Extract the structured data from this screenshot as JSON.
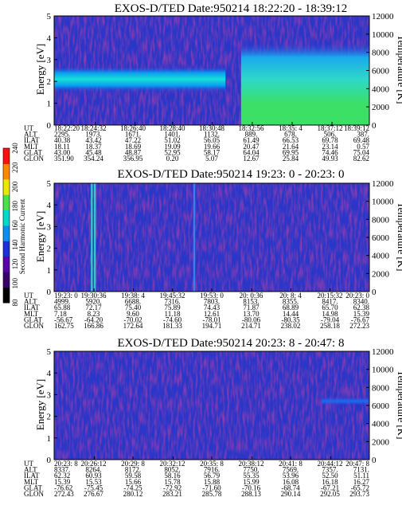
{
  "figure": {
    "colorbar": {
      "label": "Second Harmonic Current",
      "ticks": [
        "80",
        "100",
        "120",
        "140",
        "160",
        "180",
        "200",
        "220",
        "240"
      ],
      "colors": [
        "#000000",
        "#3a006a",
        "#5a00a8",
        "#1f2fd8",
        "#0a8ef0",
        "#00d8c8",
        "#4ae04a",
        "#e8e800",
        "#ff8800",
        "#ff1010"
      ]
    },
    "ephemeris_row_labels": [
      "UT",
      "ALT",
      "ILAT",
      "MLT",
      "GLAT",
      "GLON"
    ]
  },
  "chart_data": [
    {
      "type": "heatmap",
      "title": "EXOS-D/TED   Date:950214   18:22:20 - 18:39:12",
      "ylabel": "Energy [eV]",
      "ylabel_right": "Temperature [K]",
      "ylim": [
        0,
        5
      ],
      "ylim_right": [
        0,
        12000
      ],
      "yticks": [
        "0",
        "1",
        "2",
        "3",
        "4",
        "5"
      ],
      "yticks_right": [
        "0",
        "2000",
        "4000",
        "6000",
        "8000",
        "10000",
        "12000"
      ],
      "grid": false,
      "ephemeris": {
        "UT": [
          "18:22:20",
          "18:24:32",
          "18:26:40",
          "18:28:40",
          "18:30:48",
          "18:32:56",
          "18:35: 4",
          "18:37:12",
          "18:39:12"
        ],
        "ALT": [
          "2295.",
          "1973.",
          "1671.",
          "1401.",
          "1132.",
          "889.",
          "678.",
          "506.",
          "387."
        ],
        "ILAT": [
          "40.38",
          "43.42",
          "47.22",
          "51.02",
          "56.05",
          "61.49",
          "66.53",
          "69.78",
          "69.48"
        ],
        "MLT": [
          "18.11",
          "18.37",
          "18.69",
          "19.09",
          "19.66",
          "20.47",
          "21.64",
          "23.14",
          "0.57"
        ],
        "GLAT": [
          "43.00",
          "45.48",
          "48.87",
          "52.95",
          "58.17",
          "64.04",
          "69.95",
          "74.46",
          "75.04"
        ],
        "GLON": [
          "351.90",
          "354.24",
          "356.95",
          "0.20",
          "5.07",
          "12.67",
          "25.84",
          "49.93",
          "82.62"
        ]
      },
      "features": [
        {
          "kind": "band",
          "energy_center_eV": 2.1,
          "energy_width_eV": 1.2,
          "ut_from": "18:22:20",
          "ut_to": "18:31:30",
          "level": "high"
        },
        {
          "kind": "enhancement",
          "energy_from_eV": 0,
          "energy_to_eV": 3.8,
          "ut_from": "18:32:20",
          "ut_to": "18:39:12",
          "level": "very high"
        }
      ]
    },
    {
      "type": "heatmap",
      "title": "EXOS-D/TED   Date:950214   19:23: 0 - 20:23: 0",
      "ylabel": "Energy [eV]",
      "ylabel_right": "Temperature [K]",
      "ylim": [
        0,
        5
      ],
      "ylim_right": [
        0,
        12000
      ],
      "yticks": [
        "0",
        "1",
        "2",
        "3",
        "4",
        "5"
      ],
      "yticks_right": [
        "0",
        "2000",
        "4000",
        "6000",
        "8000",
        "10000",
        "12000"
      ],
      "grid": false,
      "ephemeris": {
        "UT": [
          "19:23: 0",
          "19:30:36",
          "19:38: 4",
          "19:45:32",
          "19:53: 0",
          "20: 0:36",
          "20: 8: 4",
          "20:15:32",
          "20:23: 0"
        ],
        "ALT": [
          "4999.",
          "5920.",
          "6688.",
          "7316.",
          "7803.",
          "8153.",
          "8355.",
          "8417.",
          "8340."
        ],
        "ILAT": [
          "65.88",
          "72.17",
          "75.40",
          "75.89",
          "74.43",
          "71.87",
          "68.89",
          "65.70",
          "62.38"
        ],
        "MLT": [
          "7.18",
          "8.23",
          "9.60",
          "11.18",
          "12.61",
          "13.70",
          "14.44",
          "14.98",
          "15.39"
        ],
        "GLAT": [
          "-56.67",
          "-64.20",
          "-70.02",
          "-74.60",
          "-78.01",
          "-80.06",
          "-80.35",
          "-79.04",
          "-76.67"
        ],
        "GLON": [
          "162.75",
          "166.86",
          "172.64",
          "181.33",
          "194.71",
          "214.71",
          "238.02",
          "258.18",
          "272.23"
        ]
      },
      "features": [
        {
          "kind": "spike",
          "ut": "19:30:10",
          "level": "high"
        },
        {
          "kind": "spike",
          "ut": "19:30:45",
          "level": "high"
        },
        {
          "kind": "spike",
          "ut": "19:49:40",
          "level": "medium"
        }
      ]
    },
    {
      "type": "heatmap",
      "title": "EXOS-D/TED   Date:950214   20:23: 8 - 20:47: 8",
      "ylabel": "Energy [eV]",
      "ylabel_right": "Temperature [K]",
      "ylim": [
        0,
        5
      ],
      "ylim_right": [
        0,
        12000
      ],
      "yticks": [
        "0",
        "1",
        "2",
        "3",
        "4",
        "5"
      ],
      "yticks_right": [
        "0",
        "2000",
        "4000",
        "6000",
        "8000",
        "10000",
        "12000"
      ],
      "grid": false,
      "ephemeris": {
        "UT": [
          "20:23: 8",
          "20:26:12",
          "20:29: 8",
          "20:32:12",
          "20:35: 8",
          "20:38:12",
          "20:41: 8",
          "20:44:12",
          "20:47: 8"
        ],
        "ALT": [
          "8337.",
          "8264.",
          "8172.",
          "8052.",
          "7916.",
          "7750.",
          "7569.",
          "7357.",
          "7131."
        ],
        "ILAT": [
          "62.32",
          "60.93",
          "59.58",
          "58.16",
          "56.79",
          "55.35",
          "53.96",
          "52.50",
          "51.11"
        ],
        "MLT": [
          "15.39",
          "15.53",
          "15.66",
          "15.78",
          "15.88",
          "15.99",
          "16.08",
          "16.18",
          "16.27"
        ],
        "GLAT": [
          "-76.62",
          "-75.45",
          "-74.25",
          "-72.92",
          "-71.60",
          "-70.16",
          "-68.74",
          "-67.21",
          "-65.72"
        ],
        "GLON": [
          "272.43",
          "276.67",
          "280.12",
          "283.21",
          "285.78",
          "288.13",
          "290.14",
          "292.05",
          "293.73"
        ]
      },
      "features": [
        {
          "kind": "band",
          "energy_center_eV": 2.7,
          "energy_width_eV": 0.35,
          "ut_from": "20:43:30",
          "ut_to": "20:47: 8",
          "level": "medium"
        }
      ]
    }
  ]
}
